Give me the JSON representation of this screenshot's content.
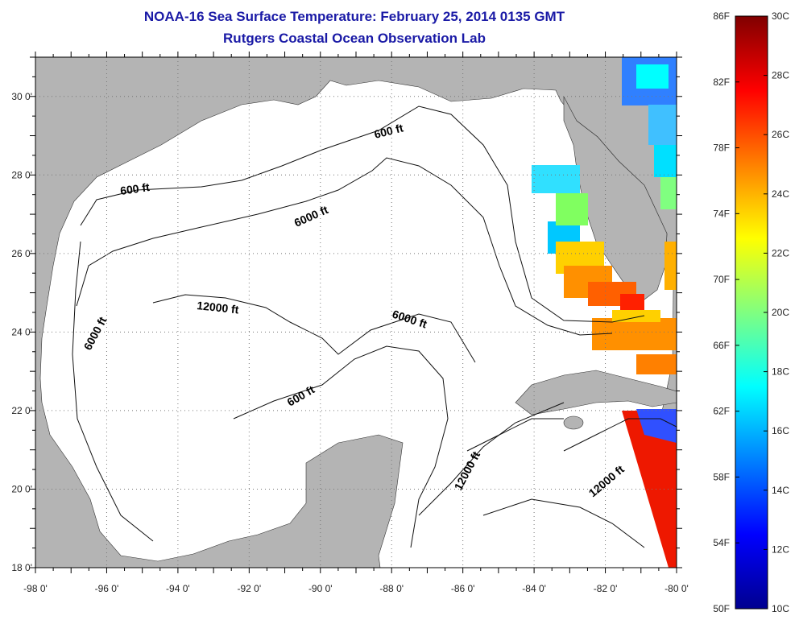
{
  "title": "NOAA-16 Sea Surface Temperature:  February 25, 2014 0135 GMT",
  "subtitle": "Rutgers Coastal Ocean Observation Lab",
  "map": {
    "lon_range": [
      -98,
      -80
    ],
    "lat_range": [
      18,
      31
    ],
    "lon_labels": [
      "-98 0'",
      "-96 0'",
      "-94 0'",
      "-92 0'",
      "-90 0'",
      "-88 0'",
      "-86 0'",
      "-84 0'",
      "-82 0'",
      "-80 0'"
    ],
    "lat_labels": [
      "18 0'",
      "20 0'",
      "22 0'",
      "24 0'",
      "26 0'",
      "28 0'",
      "30 0'"
    ],
    "grid": "dotted",
    "land_color": "#b4b4b4",
    "contour_labels": [
      "600 ft",
      "600 ft",
      "6000 ft",
      "12000 ft",
      "6000 ft",
      "6000 ft",
      "600 ft",
      "12000 ft",
      "12000 ft"
    ]
  },
  "colorbar": {
    "fahrenheit_labels": [
      "86F",
      "82F",
      "78F",
      "74F",
      "70F",
      "66F",
      "62F",
      "58F",
      "54F",
      "50F"
    ],
    "celsius_labels": [
      "30C",
      "28C",
      "26C",
      "24C",
      "22C",
      "20C",
      "18C",
      "16C",
      "14C",
      "12C",
      "10C"
    ],
    "range_c": [
      10,
      30
    ],
    "colors": [
      "#00008f",
      "#0000ff",
      "#0080ff",
      "#00ffff",
      "#80ff80",
      "#ffff00",
      "#ff8000",
      "#ff0000",
      "#800000"
    ]
  }
}
